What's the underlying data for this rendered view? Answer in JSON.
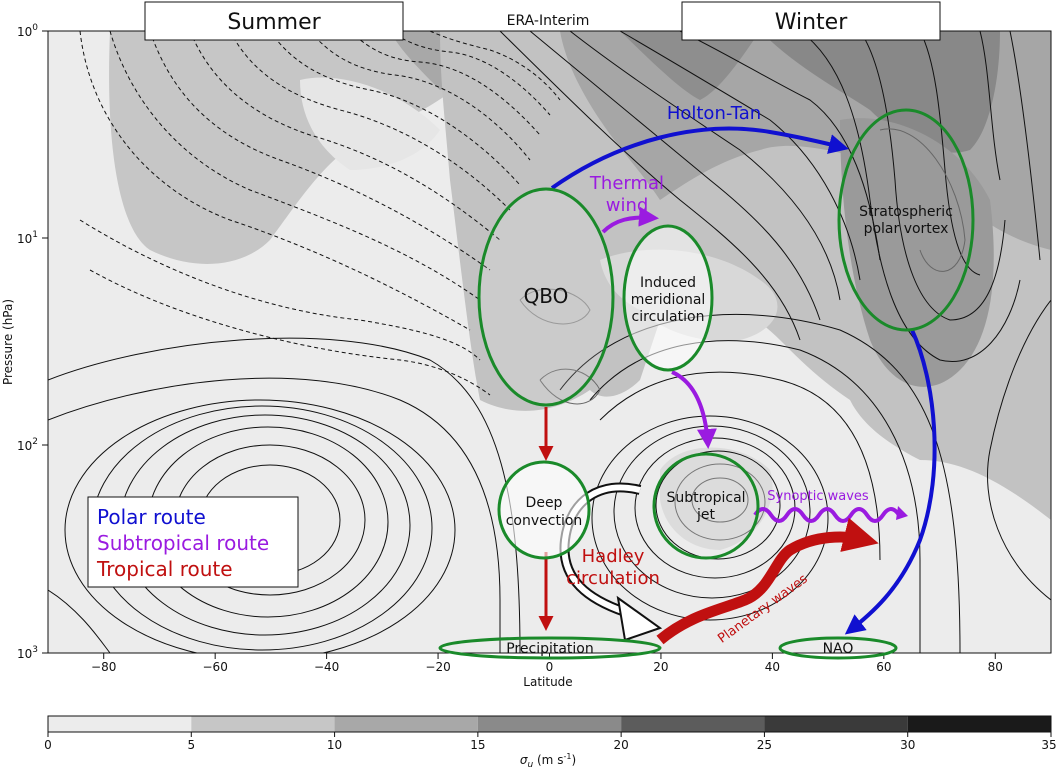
{
  "header": {
    "summer": "Summer",
    "winter": "Winter",
    "dataset": "ERA-Interim"
  },
  "axes": {
    "xlabel": "Latitude",
    "ylabel": "Pressure (hPa)",
    "x_ticks": [
      "−80",
      "−60",
      "−40",
      "−20",
      "0",
      "20",
      "40",
      "60",
      "80"
    ],
    "y_ticks": [
      {
        "base": "10",
        "exp": "0"
      },
      {
        "base": "10",
        "exp": "1"
      },
      {
        "base": "10",
        "exp": "2"
      },
      {
        "base": "10",
        "exp": "3"
      }
    ]
  },
  "ellipses": {
    "qbo": "QBO",
    "induced": [
      "Induced",
      "meridional",
      "circulation"
    ],
    "vortex": [
      "Stratospheric",
      "polar vortex"
    ],
    "deep_convection": [
      "Deep",
      "convection"
    ],
    "subtropical_jet": [
      "Subtropical",
      "jet"
    ],
    "precipitation": "Precipitation",
    "nao": "NAO"
  },
  "arrow_labels": {
    "holton_tan": "Holton-Tan",
    "thermal_wind": [
      "Thermal",
      "wind"
    ],
    "synoptic_waves": "Synoptic waves",
    "hadley": [
      "Hadley",
      "circulation"
    ],
    "planetary_waves": "Planetary waves"
  },
  "legend": {
    "items": [
      {
        "label": "Polar route",
        "color": "#1010d0"
      },
      {
        "label": "Subtropical route",
        "color": "#9a1be0"
      },
      {
        "label": "Tropical route",
        "color": "#c01010"
      }
    ]
  },
  "colorbar": {
    "ticks": [
      "0",
      "5",
      "10",
      "15",
      "20",
      "25",
      "30",
      "35"
    ],
    "label_symbol": "σ",
    "label_sub": "u",
    "label_units": " (m s",
    "label_units_exp": "-1",
    "label_end": ")"
  },
  "colors": {
    "polar": "#1010d0",
    "subtropical": "#9a1be0",
    "tropical": "#c01010",
    "ellipse": "#1a8a2a",
    "background_shade": "#ececec"
  }
}
